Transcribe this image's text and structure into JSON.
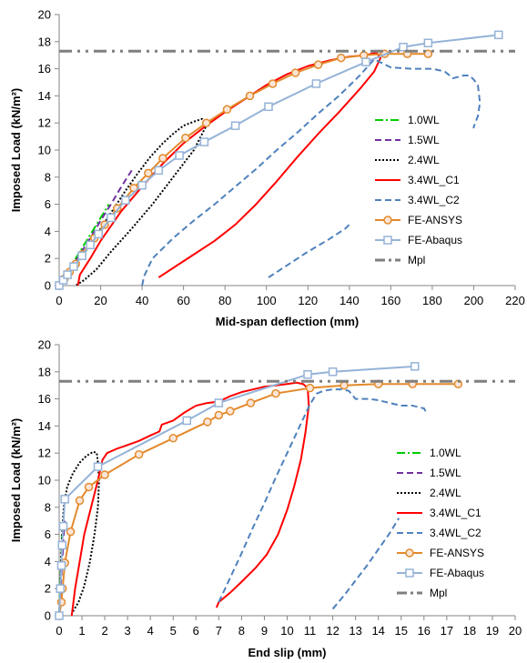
{
  "chart_data": [
    {
      "type": "line",
      "xlabel": "Mid-span deflection (mm)",
      "ylabel": "Imposed Load (kN/m²)",
      "xlim": [
        0,
        220
      ],
      "ylim": [
        0,
        20
      ],
      "xticks": [
        0,
        20,
        40,
        60,
        80,
        100,
        120,
        140,
        160,
        180,
        200,
        220
      ],
      "yticks": [
        0,
        2,
        4,
        6,
        8,
        10,
        12,
        14,
        16,
        18,
        20
      ],
      "xtick_labels": [
        "0",
        "20",
        "40",
        "60",
        "80",
        "100",
        "120",
        "140",
        "160",
        "180",
        "200",
        "220"
      ],
      "ytick_labels": [
        "0",
        "2",
        "4",
        "6",
        "8",
        "10",
        "12",
        "14",
        "16",
        "18",
        "20"
      ],
      "grid": false,
      "legend": "right-middle",
      "series": [
        {
          "name": "1.0WL",
          "color": "#00cc00",
          "dash": "dashdot",
          "marker": "none",
          "x": [
            0,
            4,
            8,
            12,
            16,
            20,
            24
          ],
          "y": [
            0,
            1.0,
            2.0,
            3.0,
            4.0,
            5.0,
            6.0
          ]
        },
        {
          "name": "1.5WL",
          "color": "#7030a0",
          "dash": "dash",
          "marker": "none",
          "x": [
            0,
            5,
            10,
            15,
            20,
            25,
            30,
            35
          ],
          "y": [
            0,
            1.1,
            2.3,
            3.5,
            4.8,
            6.0,
            7.3,
            8.5
          ]
        },
        {
          "name": "2.4WL",
          "color": "#000000",
          "dash": "dot",
          "marker": "none",
          "x": [
            0,
            8,
            14,
            20,
            26,
            32,
            38,
            44,
            50,
            55,
            60,
            65,
            69,
            71,
            65,
            55,
            45,
            35,
            25,
            18,
            12,
            8
          ],
          "y": [
            0,
            1.5,
            2.8,
            4.2,
            5.6,
            7.0,
            8.3,
            9.5,
            10.5,
            11.2,
            11.8,
            12.1,
            12.3,
            11.8,
            10.0,
            8.0,
            6.0,
            4.2,
            2.5,
            1.2,
            0.4,
            0
          ]
        },
        {
          "name": "3.4WL_C1",
          "color": "#ff0000",
          "dash": "solid",
          "marker": "none",
          "x": [
            9,
            10,
            15,
            20,
            30,
            40,
            50,
            60,
            70,
            80,
            90,
            100,
            110,
            120,
            130,
            140,
            148,
            153,
            155,
            152,
            145,
            135,
            125,
            115,
            105,
            95,
            85,
            75,
            65,
            55,
            48
          ],
          "y": [
            0,
            0.8,
            2.0,
            3.3,
            5.5,
            7.3,
            9.0,
            10.5,
            11.7,
            12.8,
            13.8,
            14.8,
            15.6,
            16.2,
            16.6,
            16.9,
            17.0,
            17.2,
            16.8,
            15.8,
            14.5,
            12.8,
            11.2,
            9.5,
            7.7,
            6.0,
            4.5,
            3.3,
            2.3,
            1.3,
            0.6
          ]
        },
        {
          "name": "3.4WL_C2",
          "color": "#4f81bd",
          "dash": "dash",
          "marker": "none",
          "x": [
            40,
            41,
            45,
            55,
            65,
            75,
            85,
            95,
            105,
            115,
            125,
            135,
            145,
            152,
            160,
            170,
            180,
            186,
            190,
            195,
            198,
            200,
            202,
            203,
            202,
            200,
            200
          ],
          "y": [
            0,
            0.7,
            2.0,
            3.5,
            4.8,
            6.0,
            7.3,
            8.6,
            10.0,
            11.3,
            12.7,
            14.0,
            15.5,
            16.7,
            16.1,
            16.0,
            16.0,
            15.8,
            15.3,
            15.5,
            15.5,
            15.2,
            14.8,
            13.5,
            12.5,
            11.7,
            11.6
          ]
        },
        {
          "name": "",
          "color": "#4f81bd",
          "dash": "dash",
          "marker": "none",
          "x": [
            101,
            110,
            120,
            130,
            138,
            140
          ],
          "y": [
            0.6,
            1.5,
            2.5,
            3.4,
            4.2,
            4.5
          ]
        },
        {
          "name": "FE-ANSYS",
          "color": "#e28a2b",
          "dash": "solid",
          "marker": "circle",
          "x": [
            0,
            2.5,
            5,
            8,
            11,
            17,
            22,
            28,
            36,
            43,
            50,
            61,
            71,
            81,
            92,
            103,
            114,
            125,
            136,
            147,
            157,
            168,
            178
          ],
          "y": [
            0,
            0.5,
            1.0,
            1.6,
            2.3,
            3.5,
            4.5,
            5.7,
            7.2,
            8.3,
            9.4,
            10.9,
            12.0,
            13.0,
            14.0,
            14.9,
            15.7,
            16.3,
            16.8,
            17.0,
            17.1,
            17.1,
            17.1
          ]
        },
        {
          "name": "FE-Abaqus",
          "color": "#95b3d7",
          "dash": "solid",
          "marker": "square",
          "x": [
            0,
            2,
            4,
            7,
            11,
            15,
            19,
            25,
            32,
            40,
            48,
            58,
            70,
            85,
            101,
            124,
            148,
            166,
            178,
            212
          ],
          "y": [
            0,
            0.4,
            0.8,
            1.4,
            2.2,
            3.0,
            3.8,
            5.0,
            6.3,
            7.4,
            8.5,
            9.6,
            10.6,
            11.8,
            13.2,
            14.9,
            16.5,
            17.6,
            17.9,
            18.5
          ]
        },
        {
          "name": "Mpl",
          "color": "#7f7f7f",
          "dash": "dashdotdot",
          "marker": "none",
          "x": [
            0,
            220
          ],
          "y": [
            17.3,
            17.3
          ]
        }
      ]
    },
    {
      "type": "line",
      "xlabel": "End slip (mm)",
      "ylabel": "Imposed Load (kN/m²)",
      "xlim": [
        0,
        20
      ],
      "ylim": [
        0,
        20
      ],
      "xticks": [
        0,
        1,
        2,
        3,
        4,
        5,
        6,
        7,
        8,
        9,
        10,
        11,
        12,
        13,
        14,
        15,
        16,
        17,
        18,
        19,
        20
      ],
      "yticks": [
        0,
        2,
        4,
        6,
        8,
        10,
        12,
        14,
        16,
        18,
        20
      ],
      "xtick_labels": [
        "0",
        "1",
        "2",
        "3",
        "4",
        "5",
        "6",
        "7",
        "8",
        "9",
        "10",
        "11",
        "12",
        "13",
        "14",
        "15",
        "16",
        "17",
        "18",
        "19",
        "20"
      ],
      "ytick_labels": [
        "0",
        "2",
        "4",
        "6",
        "8",
        "10",
        "12",
        "14",
        "16",
        "18",
        "20"
      ],
      "grid": false,
      "legend": "right-middle",
      "series": [
        {
          "name": "1.0WL",
          "color": "#00cc00",
          "dash": "dashdot",
          "marker": "none",
          "x": [
            0,
            0.03,
            0.06,
            0.1,
            0.12
          ],
          "y": [
            0,
            1.5,
            3.0,
            4.5,
            6.0
          ]
        },
        {
          "name": "1.5WL",
          "color": "#7030a0",
          "dash": "dash",
          "marker": "none",
          "x": [
            0,
            0.05,
            0.1,
            0.15,
            0.2,
            0.25
          ],
          "y": [
            0,
            1.5,
            3.0,
            4.5,
            6.0,
            7.0
          ]
        },
        {
          "name": "2.4WL",
          "color": "#000000",
          "dash": "dot",
          "marker": "none",
          "x": [
            0,
            0.05,
            0.1,
            0.2,
            0.35,
            0.6,
            0.9,
            1.2,
            1.5,
            1.65,
            1.7,
            1.75,
            1.7,
            1.55,
            1.35,
            1.1,
            0.85,
            0.6
          ],
          "y": [
            0,
            2.0,
            5.0,
            8.0,
            9.5,
            10.5,
            11.3,
            11.8,
            12.1,
            12.0,
            11.3,
            10.0,
            8.0,
            6.0,
            4.0,
            2.2,
            1.0,
            0.3
          ]
        },
        {
          "name": "3.4WL_C1",
          "color": "#ff0000",
          "dash": "solid",
          "marker": "none",
          "x": [
            0.55,
            0.7,
            0.9,
            1.1,
            1.4,
            1.7,
            1.9,
            2.1,
            2.5,
            3.0,
            3.5,
            4.0,
            4.4,
            4.5,
            5.0,
            5.5,
            6.0,
            6.5,
            7.0,
            7.5,
            8.0,
            8.5,
            9.0,
            9.5,
            10.0,
            10.4,
            10.7,
            10.9,
            10.95,
            10.8,
            10.6,
            10.3,
            10.0,
            9.6,
            9.1,
            8.6,
            8.0,
            7.5,
            7.0,
            6.9
          ],
          "y": [
            0,
            2.0,
            4.0,
            6.0,
            8.0,
            10.0,
            11.5,
            12.0,
            12.3,
            12.6,
            12.9,
            13.3,
            13.6,
            14.1,
            14.4,
            15.0,
            15.5,
            15.7,
            15.8,
            16.2,
            16.5,
            16.7,
            16.9,
            17.0,
            17.1,
            17.2,
            17.1,
            16.8,
            15.5,
            13.5,
            11.5,
            9.5,
            7.8,
            6.0,
            4.5,
            3.5,
            2.5,
            1.7,
            1.0,
            0.6
          ]
        },
        {
          "name": "3.4WL_C2",
          "color": "#4f81bd",
          "dash": "dash",
          "marker": "none",
          "x": [
            7,
            7.5,
            8.0,
            8.5,
            9.0,
            9.5,
            10.0,
            10.5,
            11.0,
            11.3,
            11.6,
            12.0,
            12.4,
            12.7,
            13.0,
            13.3,
            13.6,
            14.0,
            14.5,
            15.0,
            15.5,
            16.0,
            16.1
          ],
          "y": [
            1.0,
            2.8,
            4.6,
            6.5,
            8.3,
            10.2,
            12.0,
            13.8,
            15.6,
            16.4,
            16.6,
            16.7,
            16.7,
            16.6,
            16.0,
            16.0,
            16.0,
            15.9,
            15.7,
            15.5,
            15.5,
            15.3,
            15.0
          ]
        },
        {
          "name": "",
          "color": "#4f81bd",
          "dash": "dash",
          "marker": "none",
          "x": [
            12.0,
            12.5,
            13.0,
            13.5,
            14.0,
            14.5,
            14.9
          ],
          "y": [
            0.5,
            1.5,
            2.6,
            3.7,
            4.9,
            6.1,
            7.2
          ]
        },
        {
          "name": "FE-ANSYS",
          "color": "#e28a2b",
          "dash": "solid",
          "marker": "circle",
          "x": [
            0,
            0.1,
            0.15,
            0.25,
            0.5,
            0.9,
            1.3,
            2.0,
            3.5,
            5.0,
            6.5,
            7.0,
            7.5,
            8.4,
            9.5,
            11.0,
            12.5,
            14.0,
            15.5,
            17.5
          ],
          "y": [
            0,
            1.0,
            2.0,
            3.9,
            6.2,
            8.5,
            9.5,
            10.4,
            11.9,
            13.1,
            14.3,
            14.8,
            15.1,
            15.7,
            16.4,
            16.8,
            17.0,
            17.1,
            17.1,
            17.1
          ]
        },
        {
          "name": "FE-Abaqus",
          "color": "#95b3d7",
          "dash": "solid",
          "marker": "square",
          "x": [
            0,
            0.05,
            0.1,
            0.13,
            0.18,
            0.25,
            1.7,
            5.6,
            7.0,
            10.9,
            12.0,
            15.6
          ],
          "y": [
            0,
            2.0,
            3.7,
            5.2,
            6.6,
            8.6,
            11.0,
            14.4,
            15.7,
            17.8,
            18.0,
            18.4
          ]
        },
        {
          "name": "Mpl",
          "color": "#7f7f7f",
          "dash": "dashdotdot",
          "marker": "none",
          "x": [
            0,
            20
          ],
          "y": [
            17.3,
            17.3
          ]
        }
      ]
    }
  ]
}
